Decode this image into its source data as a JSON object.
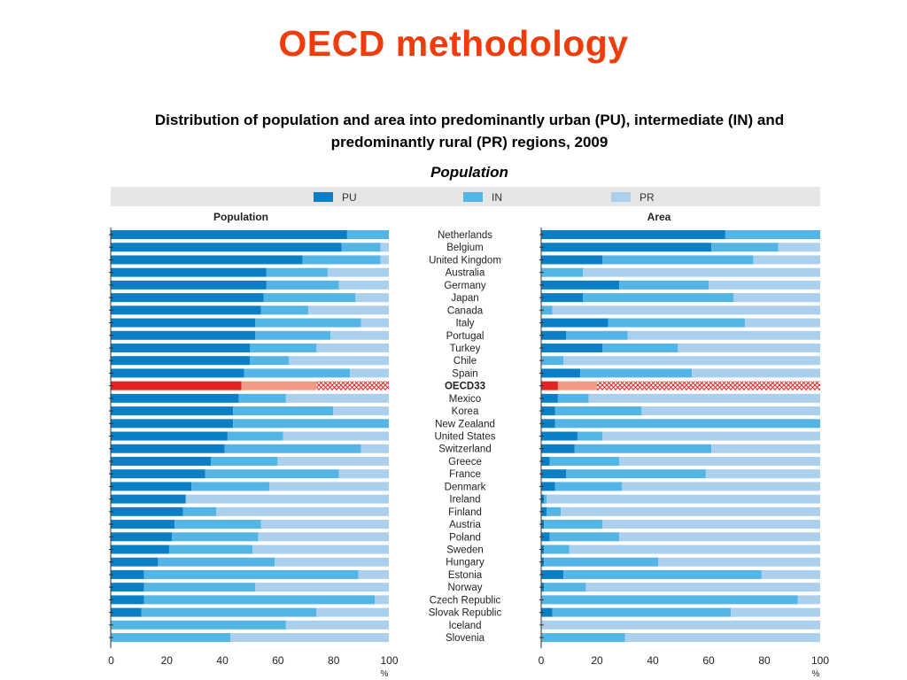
{
  "slide": {
    "title": "OECD methodology",
    "subtitle_line1": "Distribution of population and area into predominantly urban (PU), intermediate (IN) and",
    "subtitle_line2": "predominantly rural (PR) regions, 2009",
    "panel_caption": "Population"
  },
  "colors": {
    "PU": "#0a7fc6",
    "IN": "#53b5e6",
    "PR": "#abd0ee",
    "OECD_PU": "#e32427",
    "OECD_IN": "#f39a84",
    "OECD_PR_hatch": "#e32427",
    "legend_bg": "#e6e6e6",
    "title_red": "#f03c0a"
  },
  "chart_data": {
    "type": "bar",
    "stacked": true,
    "orientation": "horizontal",
    "legend": [
      "PU",
      "IN",
      "PR"
    ],
    "legend_position": "top",
    "x_unit": "%",
    "xlim": [
      0,
      100
    ],
    "x_ticks": [
      "0",
      "20",
      "40",
      "60",
      "80",
      "100"
    ],
    "highlight_category": "OECD33",
    "categories": [
      "Netherlands",
      "Belgium",
      "United Kingdom",
      "Australia",
      "Germany",
      "Japan",
      "Canada",
      "Italy",
      "Portugal",
      "Turkey",
      "Chile",
      "Spain",
      "OECD33",
      "Mexico",
      "Korea",
      "New Zealand",
      "United States",
      "Switzerland",
      "Greece",
      "France",
      "Denmark",
      "Ireland",
      "Finland",
      "Austria",
      "Poland",
      "Sweden",
      "Hungary",
      "Estonia",
      "Norway",
      "Czech Republic",
      "Slovak Republic",
      "Iceland",
      "Slovenia"
    ],
    "panels": [
      {
        "title": "Population",
        "series": [
          {
            "name": "PU",
            "values": [
              85,
              83,
              69,
              56,
              56,
              55,
              54,
              52,
              52,
              50,
              50,
              48,
              47,
              46,
              44,
              44,
              42,
              41,
              36,
              34,
              29,
              27,
              26,
              23,
              22,
              21,
              17,
              12,
              12,
              12,
              11,
              0,
              0
            ]
          },
          {
            "name": "IN",
            "values": [
              15,
              14,
              28,
              22,
              26,
              33,
              17,
              38,
              27,
              24,
              14,
              38,
              27,
              17,
              36,
              56,
              20,
              49,
              24,
              48,
              28,
              0,
              12,
              31,
              31,
              30,
              42,
              77,
              40,
              83,
              63,
              63,
              43
            ]
          },
          {
            "name": "PR",
            "values": [
              0,
              3,
              3,
              22,
              18,
              12,
              29,
              10,
              21,
              26,
              36,
              14,
              26,
              37,
              20,
              0,
              38,
              10,
              40,
              18,
              43,
              73,
              62,
              46,
              47,
              49,
              41,
              11,
              48,
              5,
              26,
              37,
              57
            ]
          }
        ]
      },
      {
        "title": "Area",
        "series": [
          {
            "name": "PU",
            "values": [
              66,
              61,
              22,
              0,
              28,
              15,
              0,
              24,
              9,
              22,
              0,
              14,
              6,
              6,
              5,
              5,
              13,
              12,
              3,
              9,
              5,
              1,
              2,
              1,
              3,
              1,
              1,
              8,
              1,
              0,
              4,
              0,
              0
            ]
          },
          {
            "name": "IN",
            "values": [
              34,
              24,
              54,
              15,
              32,
              54,
              4,
              49,
              22,
              27,
              8,
              40,
              14,
              11,
              31,
              95,
              9,
              49,
              25,
              50,
              24,
              1,
              5,
              21,
              25,
              9,
              41,
              71,
              15,
              92,
              64,
              0,
              30
            ]
          },
          {
            "name": "PR",
            "values": [
              0,
              15,
              24,
              85,
              40,
              31,
              96,
              27,
              69,
              51,
              92,
              46,
              80,
              83,
              64,
              0,
              78,
              39,
              72,
              41,
              71,
              98,
              93,
              78,
              72,
              90,
              58,
              21,
              84,
              8,
              32,
              100,
              70
            ]
          }
        ]
      }
    ]
  }
}
